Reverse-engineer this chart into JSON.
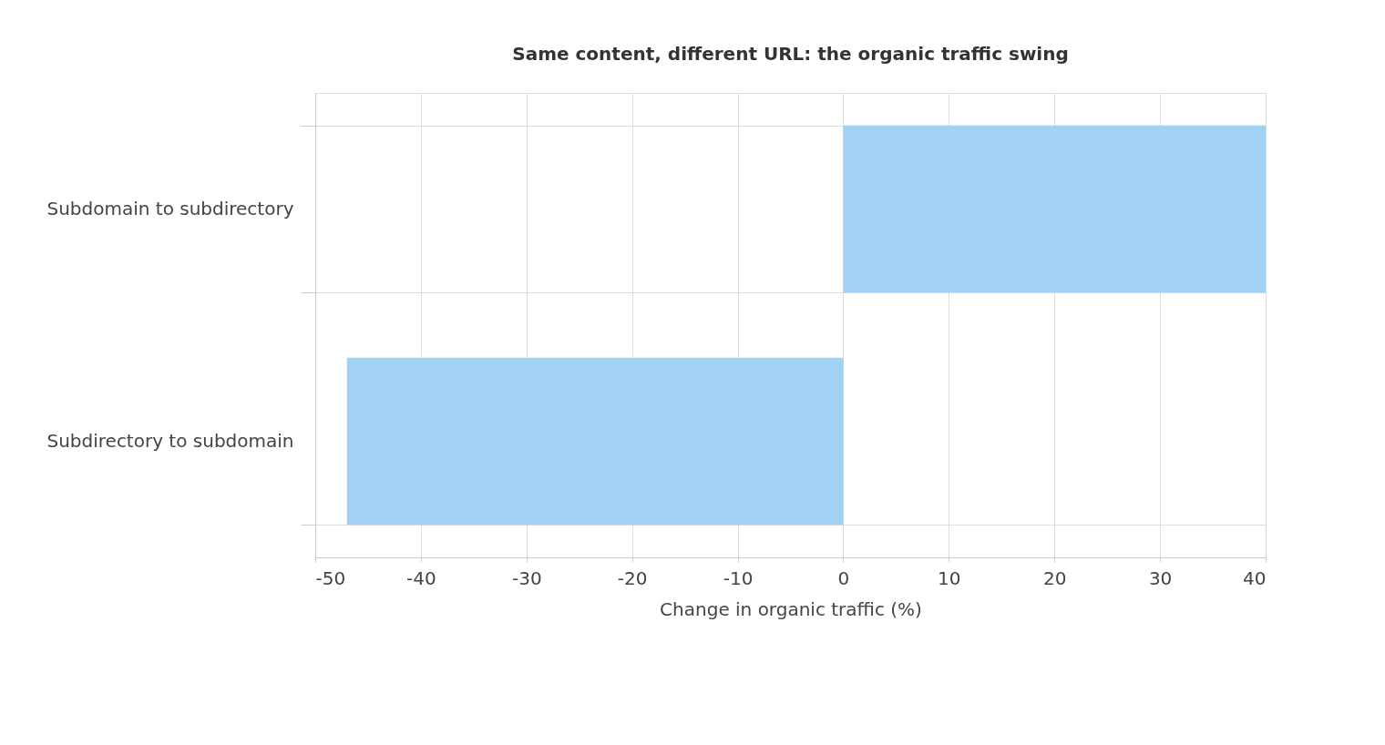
{
  "chart_data": {
    "type": "bar",
    "orientation": "horizontal",
    "title": "Same content, different URL: the organic traffic swing",
    "xlabel": "Change in organic traffic (%)",
    "categories": [
      "Subdomain to subdirectory",
      "Subdirectory to subdomain"
    ],
    "values": [
      40,
      -47
    ],
    "color": "#9ccff2",
    "xlim": [
      -50,
      40
    ],
    "xticks": [
      -50,
      -40,
      -30,
      -20,
      -10,
      0,
      10,
      20,
      30,
      40
    ],
    "grid": true
  }
}
